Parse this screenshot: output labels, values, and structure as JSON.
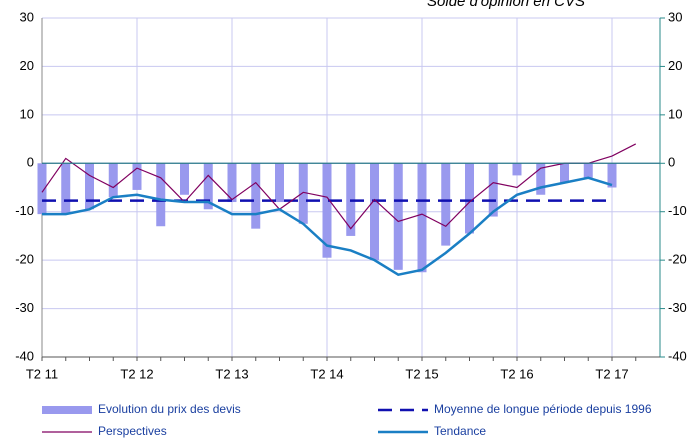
{
  "chart_data": {
    "type": "combo",
    "subtitle": "Solde d'opinion en CVS",
    "categories": [
      "T2 11",
      null,
      null,
      null,
      "T2 12",
      null,
      null,
      null,
      "T2 13",
      null,
      null,
      null,
      "T2 14",
      null,
      null,
      null,
      "T2 15",
      null,
      null,
      null,
      "T2 16",
      null,
      null,
      null,
      "T2 17",
      null
    ],
    "series": [
      {
        "name": "Evolution du prix des devis",
        "kind": "bar",
        "color": "#9999ee",
        "values": [
          -10.5,
          -10.5,
          -9.5,
          -7,
          -5.5,
          -13,
          -6.5,
          -9.5,
          -8,
          -13.5,
          -8,
          -12.5,
          -19.5,
          -15,
          -20,
          -22,
          -22.5,
          -17,
          -14.5,
          -11,
          -2.5,
          -6.5,
          -4,
          -3,
          -5,
          null
        ]
      },
      {
        "name": "Moyenne de longue période depuis 1996",
        "kind": "dashed",
        "color": "#1010b0",
        "values": [
          -7.7,
          -7.7,
          -7.7,
          -7.7,
          -7.7,
          -7.7,
          -7.7,
          -7.7,
          -7.7,
          -7.7,
          -7.7,
          -7.7,
          -7.7,
          -7.7,
          -7.7,
          -7.7,
          -7.7,
          -7.7,
          -7.7,
          -7.7,
          -7.7,
          -7.7,
          -7.7,
          -7.7,
          -7.7,
          null
        ]
      },
      {
        "name": "Perspectives",
        "kind": "line",
        "color": "#800060",
        "values": [
          -6,
          1,
          -2.5,
          -5,
          -1,
          -3,
          -8,
          -2.5,
          -7.5,
          -4,
          -9.5,
          -6,
          -7,
          -13.5,
          -7.5,
          -12,
          -10.5,
          -13,
          -8,
          -4,
          -5,
          -1,
          0,
          0,
          1.5,
          4
        ]
      },
      {
        "name": "Tendance",
        "kind": "thick",
        "color": "#1a7fc4",
        "values": [
          -10.5,
          -10.5,
          -9.5,
          -7,
          -6.5,
          -7.5,
          -8,
          -8,
          -10.5,
          -10.5,
          -9.5,
          -12.5,
          -17,
          -18,
          -20,
          -23,
          -22,
          -18.5,
          -14.5,
          -10,
          -6.5,
          -5,
          -4,
          -3,
          -4.5,
          null
        ]
      }
    ],
    "ylim": [
      -40,
      30
    ],
    "yticks": [
      -40,
      -30,
      -20,
      -10,
      0,
      10,
      20,
      30
    ],
    "y2lim": [
      -40,
      30
    ],
    "y2ticks": [
      -40,
      -30,
      -20,
      -10,
      0,
      10,
      20,
      30
    ],
    "grid": true
  }
}
